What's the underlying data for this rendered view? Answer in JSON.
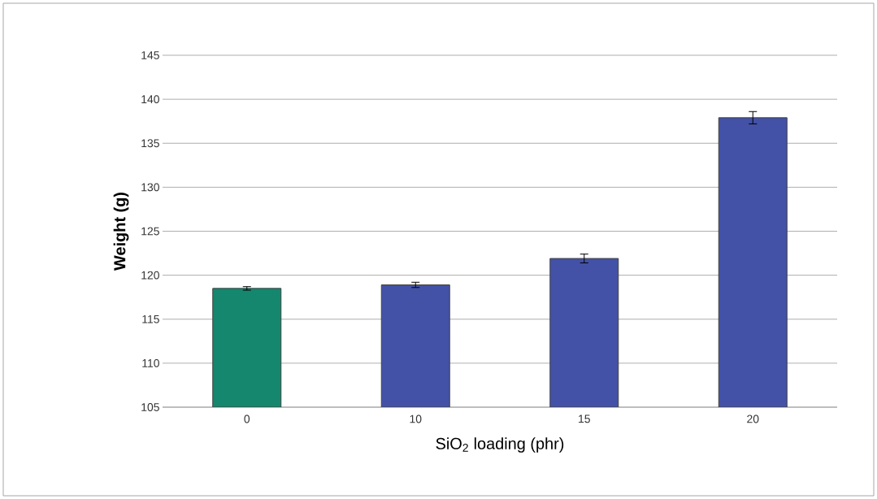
{
  "chart_data": {
    "type": "bar",
    "xlabel": "SiO$_{2}$ loading (phr)",
    "ylabel": "Weight (g)",
    "categories": [
      "0",
      "10",
      "15",
      "20"
    ],
    "values": [
      118.5,
      118.9,
      121.9,
      137.9
    ],
    "errors": [
      0.2,
      0.3,
      0.5,
      0.7
    ],
    "colors": [
      "#14876e",
      "#4352a6",
      "#4352a6",
      "#4352a6"
    ],
    "ylim": [
      105,
      145
    ],
    "yticks": [
      105,
      110,
      115,
      120,
      125,
      130,
      135,
      140,
      145
    ],
    "grid": "y"
  }
}
